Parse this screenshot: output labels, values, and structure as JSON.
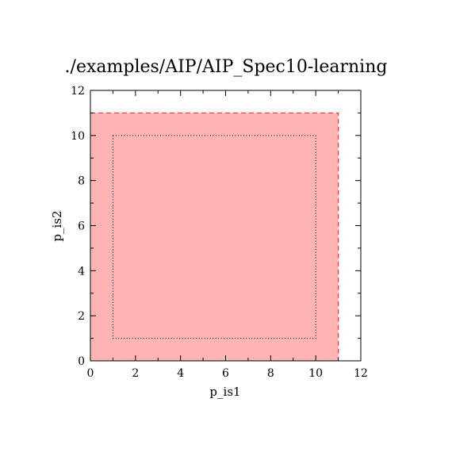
{
  "chart_data": {
    "type": "area",
    "title": "./examples/AIP/AIP_Spec10-learning",
    "xlabel": "p_is1",
    "ylabel": "p_is2",
    "xlim": [
      0,
      12
    ],
    "ylim": [
      0,
      12
    ],
    "xticks": [
      0,
      2,
      4,
      6,
      8,
      10,
      12
    ],
    "yticks": [
      0,
      2,
      4,
      6,
      8,
      10,
      12
    ],
    "xtick_labels": [
      "0",
      "2",
      "4",
      "6",
      "8",
      "10",
      "12"
    ],
    "ytick_labels": [
      "0",
      "2",
      "4",
      "6",
      "8",
      "10",
      "12"
    ],
    "grid": false,
    "regions": [
      {
        "kind": "filled-rectangle",
        "x": [
          0,
          11
        ],
        "y": [
          0,
          11
        ],
        "fill_color": "#ffb3b3",
        "edge_color": "#e0282c",
        "edge_style": "dashed"
      },
      {
        "kind": "outline-rectangle",
        "x": [
          1,
          10
        ],
        "y": [
          1,
          10
        ],
        "edge_color": "#000000",
        "edge_style": "dotted"
      }
    ]
  }
}
